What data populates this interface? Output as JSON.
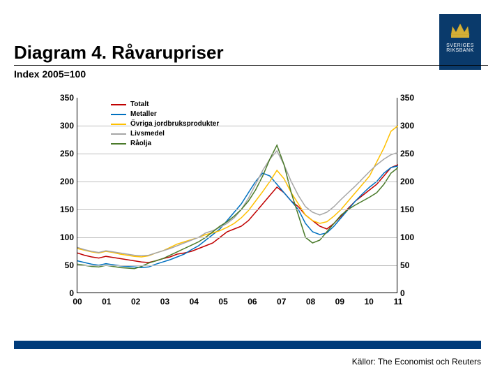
{
  "header": {
    "title": "Diagram 4. Råvarupriser",
    "subtitle": "Index 2005=100"
  },
  "logo": {
    "text": "SVERIGES\nRIKSBANK",
    "bg": "#0a3a6b",
    "crown_color": "#d4af37"
  },
  "chart": {
    "type": "line",
    "ylim": [
      0,
      350
    ],
    "ytick_step": 50,
    "xlabels": [
      "00",
      "01",
      "02",
      "03",
      "04",
      "05",
      "06",
      "07",
      "08",
      "09",
      "10",
      "11"
    ],
    "grid_color": "#bfbfbf",
    "axis_color": "#000000",
    "label_fontsize": 12,
    "series": [
      {
        "name": "Totalt",
        "label": "Totalt",
        "color": "#c00000",
        "width": 1.5,
        "data": [
          72,
          68,
          65,
          63,
          66,
          64,
          62,
          60,
          58,
          56,
          55,
          58,
          62,
          65,
          70,
          72,
          75,
          80,
          85,
          90,
          100,
          110,
          115,
          120,
          130,
          145,
          160,
          175,
          190,
          180,
          165,
          155,
          140,
          130,
          120,
          115,
          125,
          138,
          152,
          165,
          175,
          185,
          195,
          210,
          225,
          230
        ]
      },
      {
        "name": "Metaller",
        "label": "Metaller",
        "color": "#0070c0",
        "width": 1.5,
        "data": [
          58,
          55,
          52,
          50,
          53,
          51,
          49,
          48,
          47,
          46,
          47,
          52,
          56,
          60,
          65,
          70,
          78,
          85,
          95,
          105,
          115,
          130,
          145,
          160,
          180,
          200,
          215,
          210,
          195,
          180,
          165,
          150,
          125,
          110,
          105,
          108,
          120,
          135,
          150,
          165,
          178,
          190,
          200,
          215,
          225,
          228
        ]
      },
      {
        "name": "Övriga jordbruksprodukter",
        "label": "Övriga jordbruksprodukter",
        "color": "#ffc000",
        "width": 1.5,
        "data": [
          80,
          77,
          74,
          72,
          75,
          73,
          70,
          68,
          66,
          65,
          67,
          72,
          76,
          82,
          88,
          92,
          96,
          100,
          105,
          108,
          112,
          118,
          125,
          135,
          148,
          165,
          182,
          200,
          220,
          205,
          180,
          160,
          140,
          130,
          125,
          128,
          138,
          150,
          165,
          180,
          195,
          210,
          235,
          260,
          290,
          300
        ]
      },
      {
        "name": "Livsmedel",
        "label": "Livsmedel",
        "color": "#a6a6a6",
        "width": 1.5,
        "data": [
          82,
          78,
          75,
          73,
          76,
          74,
          72,
          70,
          68,
          67,
          68,
          72,
          76,
          80,
          85,
          90,
          95,
          100,
          108,
          112,
          118,
          125,
          135,
          150,
          170,
          195,
          220,
          240,
          255,
          230,
          200,
          175,
          155,
          145,
          140,
          145,
          155,
          168,
          180,
          192,
          205,
          218,
          230,
          240,
          248,
          252
        ]
      },
      {
        "name": "Råolja",
        "label": "Råolja",
        "color": "#4a7a2a",
        "width": 1.5,
        "data": [
          52,
          50,
          48,
          47,
          50,
          48,
          46,
          45,
          44,
          48,
          54,
          58,
          62,
          68,
          74,
          80,
          86,
          92,
          100,
          110,
          120,
          128,
          138,
          150,
          165,
          185,
          210,
          240,
          265,
          230,
          180,
          140,
          100,
          90,
          95,
          110,
          125,
          140,
          150,
          158,
          165,
          172,
          180,
          195,
          215,
          225
        ]
      }
    ]
  },
  "footer": {
    "bar_color": "#003b7a",
    "sources": "Källor: The Economist och Reuters"
  }
}
